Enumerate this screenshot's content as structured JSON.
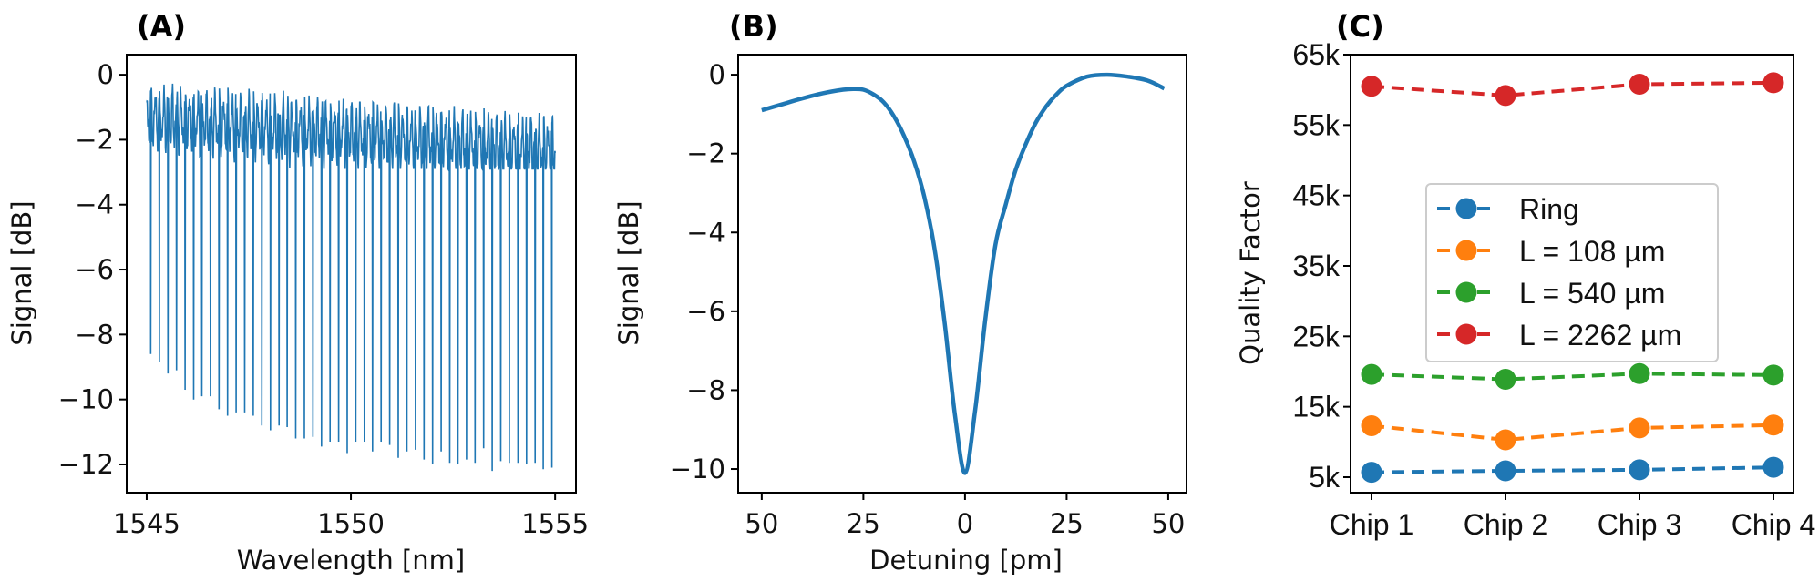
{
  "chart_data": [
    {
      "panel_label": "(A)",
      "type": "line",
      "xlabel": "Wavelength [nm]",
      "ylabel": "Signal [dB]",
      "xlim": [
        1544.51,
        1555.51
      ],
      "ylim": [
        -12.87,
        0.62
      ],
      "xticks": [
        1545,
        1550,
        1555
      ],
      "xtick_labels": [
        "1545",
        "1550",
        "1555"
      ],
      "yticks": [
        0,
        -2,
        -4,
        -6,
        -8,
        -10,
        -12
      ],
      "ytick_labels": [
        "0",
        "−2",
        "−4",
        "−6",
        "−8",
        "−10",
        "−12"
      ],
      "color": "#1f77b4",
      "baseline_range": [
        -2.5,
        0
      ],
      "resonance_wavelengths": [
        1545.1,
        1545.31,
        1545.52,
        1545.73,
        1545.94,
        1546.15,
        1546.35,
        1546.56,
        1546.77,
        1546.98,
        1547.19,
        1547.4,
        1547.61,
        1547.82,
        1548.03,
        1548.24,
        1548.44,
        1548.65,
        1548.86,
        1549.07,
        1549.28,
        1549.49,
        1549.7,
        1549.91,
        1550.12,
        1550.33,
        1550.53,
        1550.74,
        1550.95,
        1551.16,
        1551.37,
        1551.58,
        1551.79,
        1552.0,
        1552.21,
        1552.42,
        1552.62,
        1552.83,
        1553.04,
        1553.25,
        1553.46,
        1553.67,
        1553.88,
        1554.09,
        1554.3,
        1554.51,
        1554.71,
        1554.92
      ],
      "resonance_depths": [
        -8.6,
        -8.85,
        -9.2,
        -9.1,
        -9.7,
        -10.0,
        -9.9,
        -9.9,
        -10.3,
        -10.5,
        -10.4,
        -10.4,
        -10.5,
        -10.8,
        -10.95,
        -10.8,
        -10.85,
        -11.2,
        -11.2,
        -11.15,
        -11.45,
        -11.3,
        -11.3,
        -11.65,
        -11.3,
        -11.3,
        -11.6,
        -11.3,
        -11.4,
        -11.8,
        -11.6,
        -11.55,
        -11.85,
        -12.0,
        -11.6,
        -11.95,
        -12.0,
        -11.85,
        -11.95,
        -11.5,
        -12.2,
        -11.9,
        -11.95,
        -11.95,
        -12.0,
        -11.95,
        -12.15,
        -12.1
      ]
    },
    {
      "panel_label": "(B)",
      "type": "line",
      "xlabel": "Detuning [pm]",
      "ylabel": "Signal [dB]",
      "xlim": [
        -55.8,
        54.5
      ],
      "ylim": [
        -10.6,
        0.51
      ],
      "xticks": [
        -50,
        -25,
        0,
        25,
        50
      ],
      "xtick_labels": [
        "50",
        "25",
        "0",
        "25",
        "50"
      ],
      "yticks": [
        0,
        -2,
        -4,
        -6,
        -8,
        -10
      ],
      "ytick_labels": [
        "0",
        "−2",
        "−4",
        "−6",
        "−8",
        "−10"
      ],
      "color": "#1f77b4",
      "x": [
        -50,
        -45,
        -40,
        -35,
        -30,
        -27.5,
        -25,
        -22.5,
        -20,
        -17.5,
        -15,
        -12.5,
        -10,
        -7.5,
        -5,
        -2.5,
        0,
        2.5,
        5,
        7.5,
        10,
        12.5,
        15,
        17.5,
        20,
        22.5,
        25,
        30,
        35,
        40,
        45,
        49
      ],
      "y": [
        -0.9,
        -0.75,
        -0.6,
        -0.47,
        -0.38,
        -0.36,
        -0.38,
        -0.5,
        -0.7,
        -1.05,
        -1.55,
        -2.2,
        -3.1,
        -4.4,
        -6.3,
        -8.6,
        -10.1,
        -8.5,
        -6.2,
        -4.3,
        -3.3,
        -2.4,
        -1.75,
        -1.2,
        -0.8,
        -0.5,
        -0.28,
        -0.05,
        0.0,
        -0.05,
        -0.15,
        -0.35
      ]
    },
    {
      "panel_label": "(C)",
      "type": "line",
      "xlabel": "",
      "ylabel": "Quality Factor",
      "categories": [
        "Chip 1",
        "Chip 2",
        "Chip 3",
        "Chip 4"
      ],
      "ylim": [
        2800,
        65000
      ],
      "yticks": [
        5000,
        15000,
        25000,
        35000,
        45000,
        55000,
        65000
      ],
      "ytick_labels": [
        "5k",
        "15k",
        "25k",
        "35k",
        "45k",
        "55k",
        "65k"
      ],
      "legend_position": "center-right",
      "line_style": "dashed",
      "marker": "circle",
      "series": [
        {
          "name": "Ring",
          "color": "#1f77b4",
          "values": [
            5700,
            5900,
            6050,
            6400
          ]
        },
        {
          "name": "L = 108 µm",
          "color": "#ff7f0e",
          "values": [
            12300,
            10300,
            12000,
            12400
          ]
        },
        {
          "name": "L = 540 µm",
          "color": "#2ca02c",
          "values": [
            19600,
            18900,
            19700,
            19500
          ]
        },
        {
          "name": "L = 2262 µm",
          "color": "#d62728",
          "values": [
            60500,
            59200,
            60800,
            61000
          ]
        }
      ]
    }
  ]
}
